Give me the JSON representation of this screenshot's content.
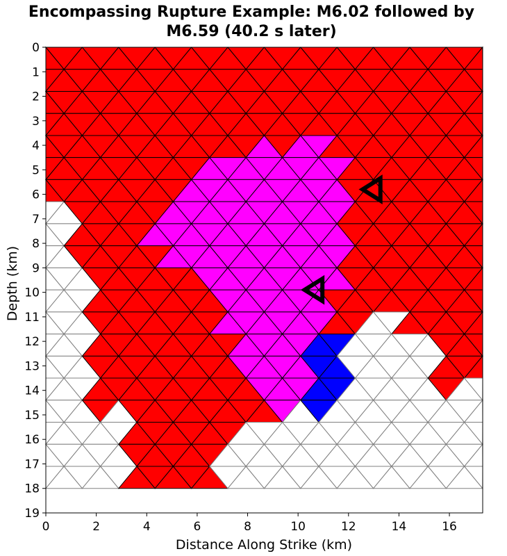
{
  "chart_data": {
    "type": "heatmap",
    "title_lines": [
      "Encompassing Rupture Example: M6.02 followed by",
      "M6.59 (40.2 s later)"
    ],
    "xlabel": "Distance Along Strike (km)",
    "ylabel": "Depth (km)",
    "xlim": [
      0,
      17.32
    ],
    "ylim": [
      19,
      0
    ],
    "x_ticks": [
      "0",
      "2",
      "4",
      "6",
      "8",
      "10",
      "12",
      "14",
      "16"
    ],
    "y_ticks": [
      "0",
      "1",
      "2",
      "3",
      "4",
      "5",
      "6",
      "7",
      "8",
      "9",
      "10",
      "11",
      "12",
      "13",
      "14",
      "15",
      "16",
      "17",
      "18",
      "19"
    ],
    "grid": "triangular mesh, row height 0.9 km, base 1.443 km",
    "colors": {
      "M6.02_only": "#ff0000",
      "M6.59_only": "#ff00ff",
      "both_events": "#0000ff",
      "no_slip": "#ffffff",
      "edge": "#000000",
      "unslipped_edge": "#808080"
    },
    "hypocenters": [
      {
        "event": "M6.02",
        "x_km": 13.0,
        "depth_km": 5.8,
        "marker": "open-triangle-left"
      },
      {
        "event": "M6.59",
        "x_km": 10.7,
        "depth_km": 9.9,
        "marker": "open-triangle-left"
      }
    ]
  }
}
